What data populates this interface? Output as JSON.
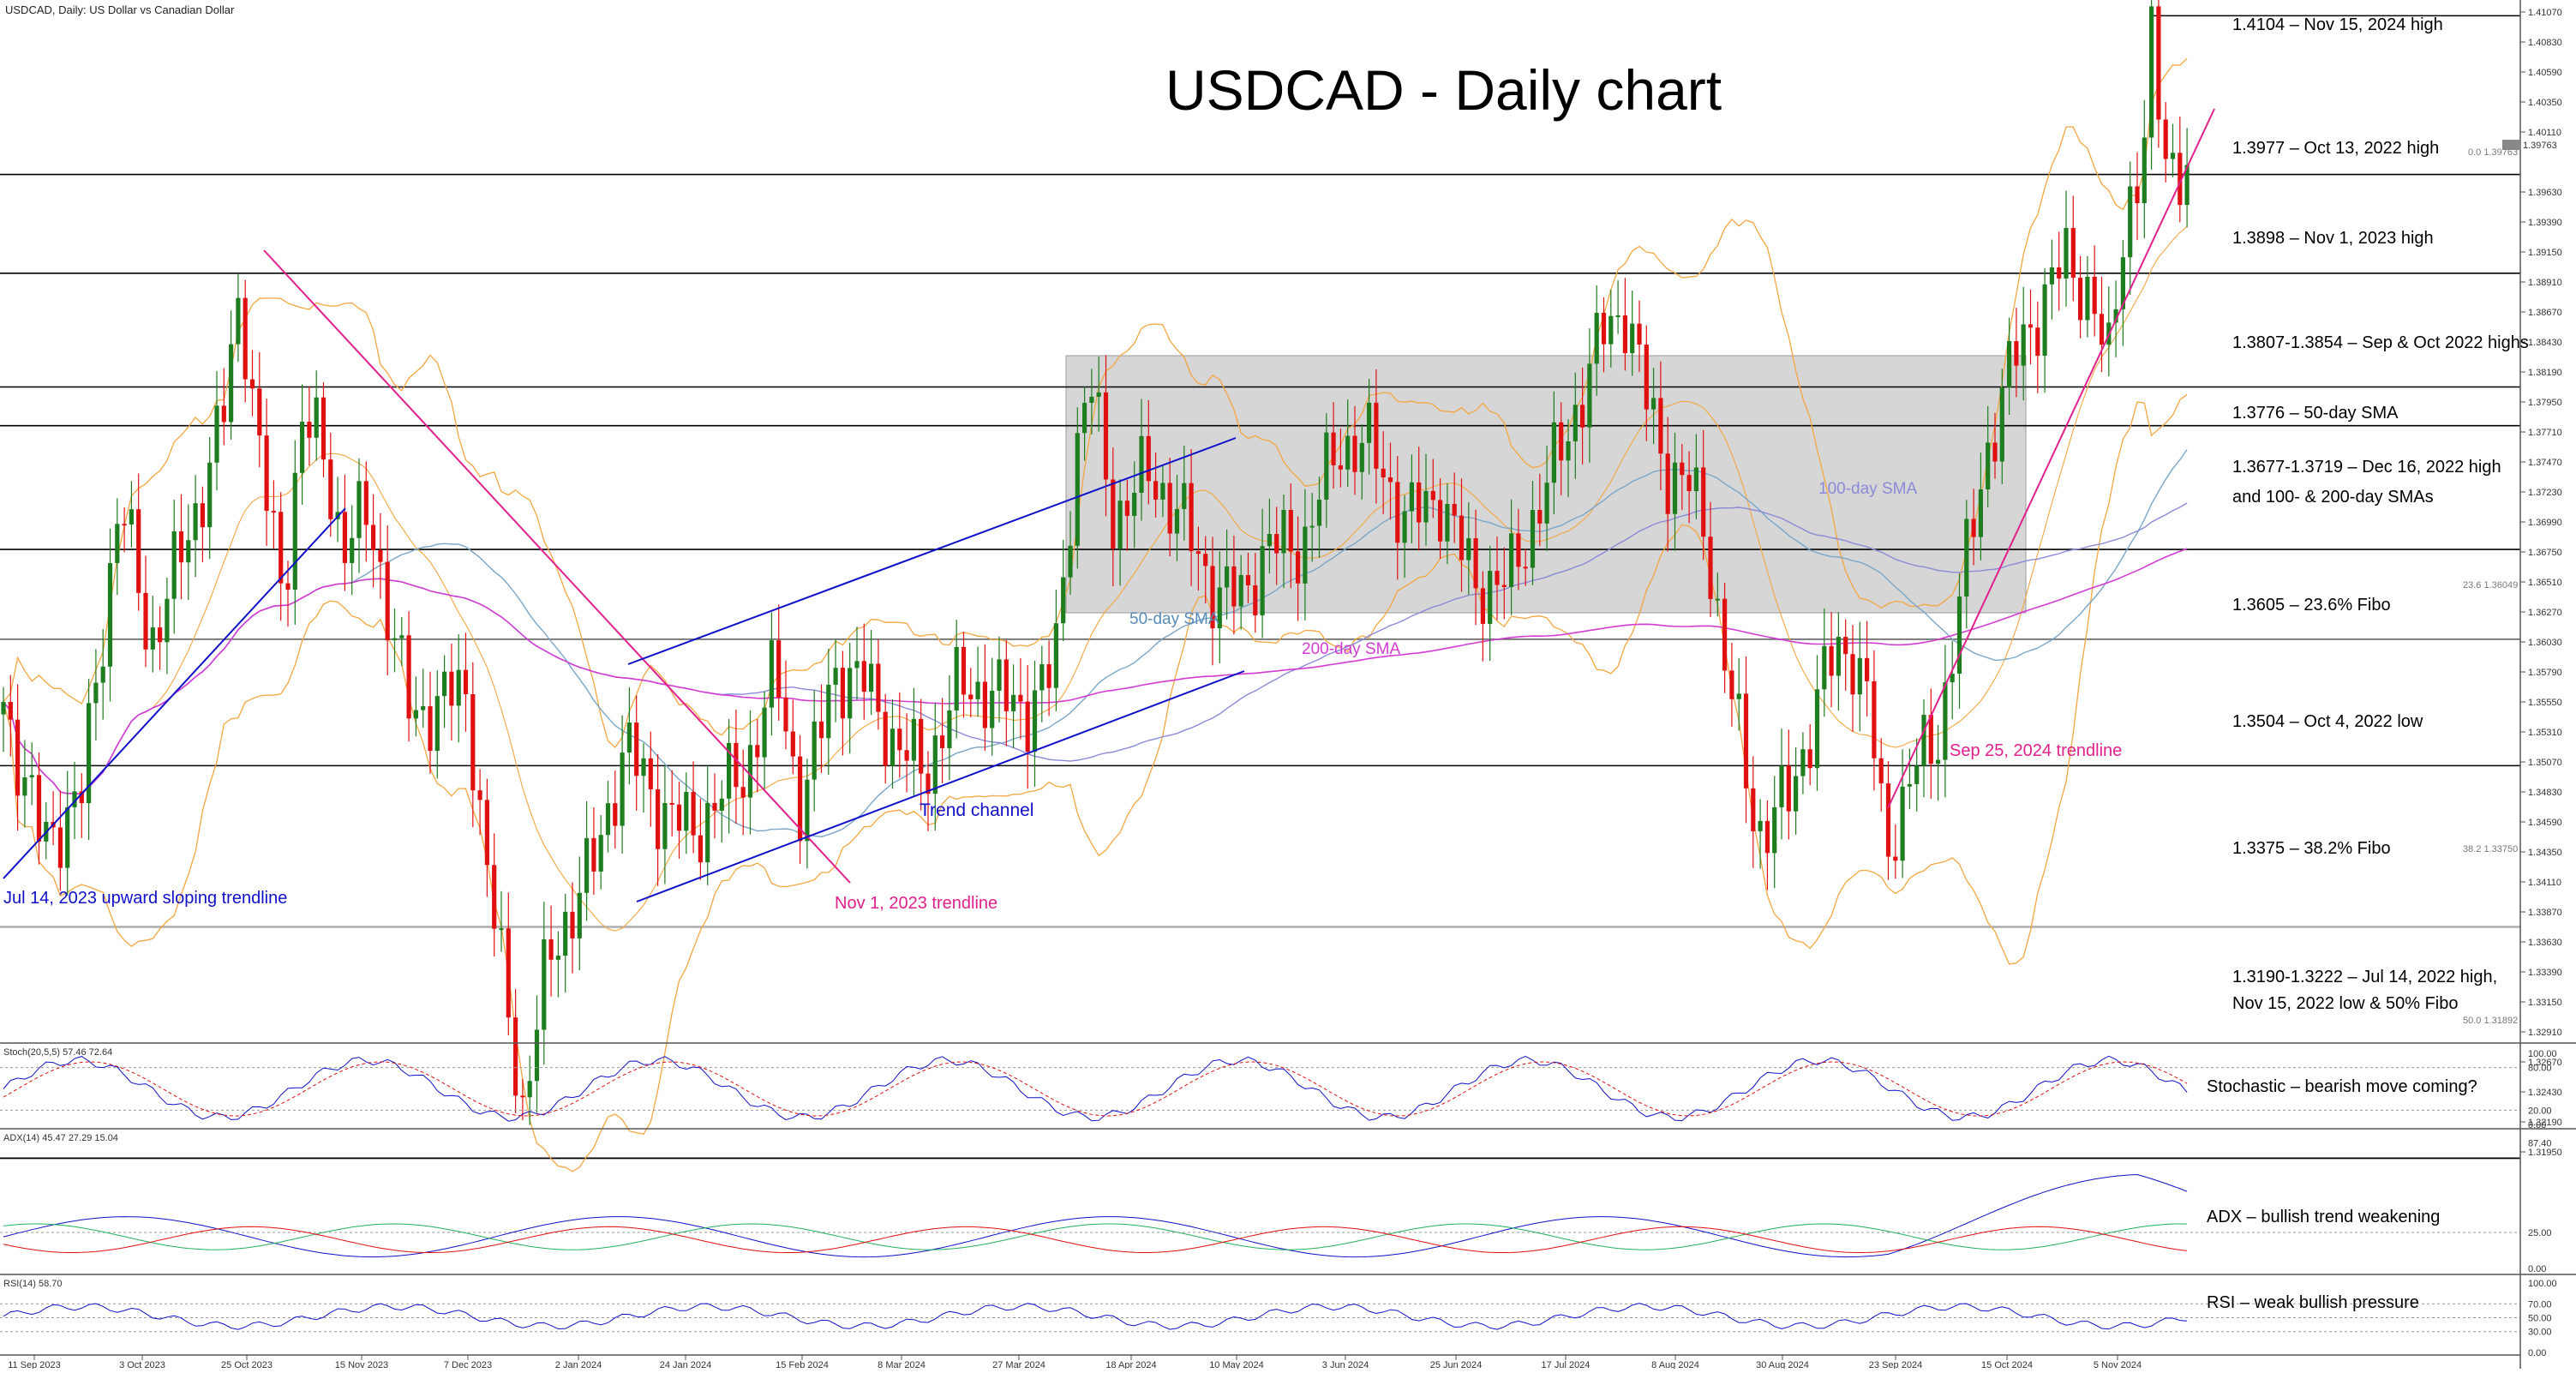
{
  "header": {
    "symbol_info": "USDCAD, Daily:  US Dollar vs Canadian Dollar"
  },
  "chart_data": {
    "type": "candlestick",
    "title": "USDCAD - Daily chart",
    "ylim": [
      1.317,
      1.4115
    ],
    "price_ticks": [
      "1.41070",
      "1.40830",
      "1.40590",
      "1.40350",
      "1.40110",
      "1.39630",
      "1.39390",
      "1.39150",
      "1.38910",
      "1.38670",
      "1.38430",
      "1.38190",
      "1.37950",
      "1.37710",
      "1.37470",
      "1.37230",
      "1.36990",
      "1.36750",
      "1.36510",
      "1.36270",
      "1.36030",
      "1.35790",
      "1.35550",
      "1.35310",
      "1.35070",
      "1.34830",
      "1.34590",
      "1.34350",
      "1.34110",
      "1.33870",
      "1.33630",
      "1.33390",
      "1.33150",
      "1.32910",
      "1.32670",
      "1.32430",
      "1.32190",
      "1.31950"
    ],
    "current_price": "1.39763",
    "x_labels": [
      "11 Sep 2023",
      "3 Oct 2023",
      "25 Oct 2023",
      "15 Nov 2023",
      "7 Dec 2023",
      "2 Jan 2024",
      "24 Jan 2024",
      "15 Feb 2024",
      "8 Mar 2024",
      "27 Mar 2024",
      "18 Apr 2024",
      "10 May 2024",
      "3 Jun 2024",
      "25 Jun 2024",
      "17 Jul 2024",
      "8 Aug 2024",
      "30 Aug 2024",
      "23 Sep 2024",
      "15 Oct 2024",
      "5 Nov 2024"
    ],
    "levels": [
      {
        "price": 1.4104,
        "label": "1.4104 – Nov 15, 2024 high"
      },
      {
        "price": 1.3977,
        "label": "1.3977 – Oct 13, 2022 high"
      },
      {
        "price": 1.3898,
        "label": "1.3898 – Nov 1, 2023 high"
      },
      {
        "price": 1.3807,
        "label": "1.3807-1.3854 – Sep & Oct 2022 highs"
      },
      {
        "price": 1.3776,
        "label": "1.3776 – 50-day SMA"
      },
      {
        "price": 1.3677,
        "label": "1.3677-1.3719 – Dec 16, 2022 high"
      },
      {
        "price": 1.3605,
        "label": "1.3605 – 23.6% Fibo"
      },
      {
        "price": 1.3504,
        "label": "1.3504 – Oct 4, 2022 low"
      },
      {
        "price": 1.3375,
        "label": "1.3375 – 38.2% Fibo"
      },
      {
        "price": 1.319,
        "label": "1.3190-1.3222 – Jul 14, 2022 high,"
      }
    ],
    "extra_labels": {
      "sma_note": "and 100- & 200-day SMAs",
      "fibo_note": "Nov 15, 2022 low & 50% Fibo",
      "fib_0": "0.0 1.39763",
      "fib_236": "23.6 1.36049",
      "fib_382": "38.2 1.33750",
      "fib_50": "50.0 1.31892"
    },
    "annotations": {
      "trendline_jul2023": "Jul 14, 2023 upward sloping trendline",
      "trendline_nov2023": "Nov 1, 2023 trendline",
      "trend_channel": "Trend channel",
      "sma50": "50-day SMA",
      "sma100": "100-day SMA",
      "sma200": "200-day SMA",
      "trendline_sep2024": "Sep 25, 2024 trendline"
    },
    "colors": {
      "up": "#1e7d1e",
      "down": "#e01010",
      "bands": "#f4a640",
      "sma50": "#7aa6c8",
      "sma100": "#8a8ad8",
      "sma200": "#d23cd2",
      "blue_lines": "#1010c8",
      "magenta_line": "#e0208c",
      "box": "#c8c8c8"
    },
    "indicators": {
      "stoch": {
        "label": "Stoch(20,5,5) 57.46 72.64",
        "ticks": [
          "100.00",
          "80.00",
          "20.00",
          "0.00"
        ],
        "comment": "Stochastic – bearish move coming?"
      },
      "adx": {
        "label": "ADX(14) 45.47 27.29 15.04",
        "ticks": [
          "87.40",
          "25.00",
          "0.00"
        ],
        "comment": "ADX – bullish trend weakening"
      },
      "rsi": {
        "label": "RSI(14) 58.70",
        "ticks": [
          "100.00",
          "70.00",
          "50.00",
          "30.00",
          "0.00"
        ],
        "comment": "RSI – weak bullish pressure"
      }
    }
  }
}
